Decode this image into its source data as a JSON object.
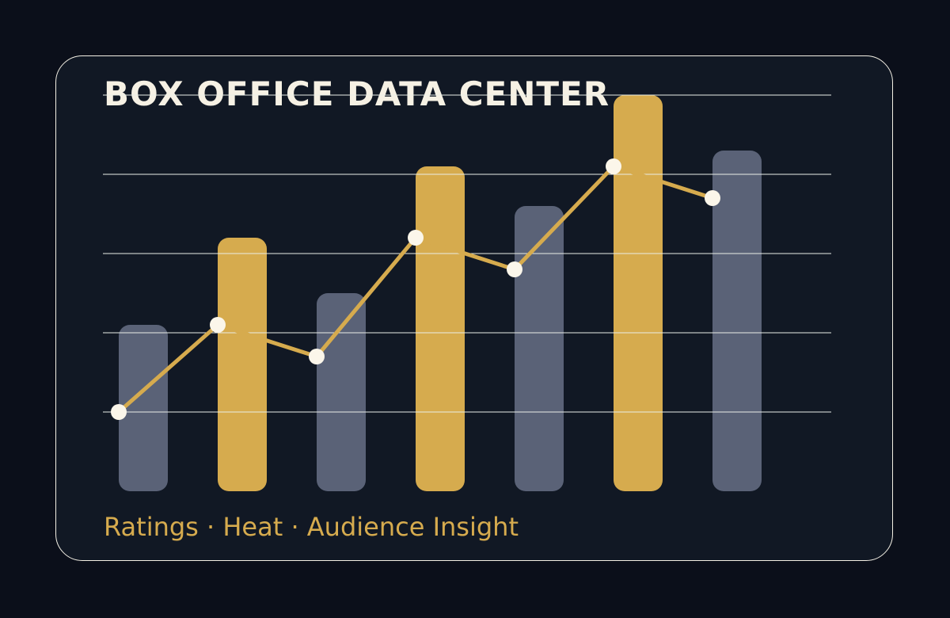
{
  "header": {
    "title": "BOX OFFICE DATA CENTER"
  },
  "footer": {
    "subtitle": "Ratings · Heat · Audience Insight"
  },
  "colors": {
    "background": "#0b0f1a",
    "card": "#111824",
    "gold": "#d6ab4e",
    "slate": "#5a6277",
    "grid": "#e9eee7",
    "point": "#fbf6ea"
  },
  "chart_data": {
    "type": "bar",
    "ylim": [
      0,
      100
    ],
    "grid": true,
    "gridlines": [
      20,
      40,
      60,
      80,
      100
    ],
    "series": [
      {
        "type": "bar",
        "values": [
          42,
          64,
          50,
          82,
          72,
          100,
          86
        ],
        "colors": [
          "slate",
          "gold",
          "slate",
          "gold",
          "slate",
          "gold",
          "slate"
        ]
      },
      {
        "type": "line",
        "values": [
          20,
          42,
          34,
          64,
          56,
          82,
          74
        ]
      }
    ]
  }
}
